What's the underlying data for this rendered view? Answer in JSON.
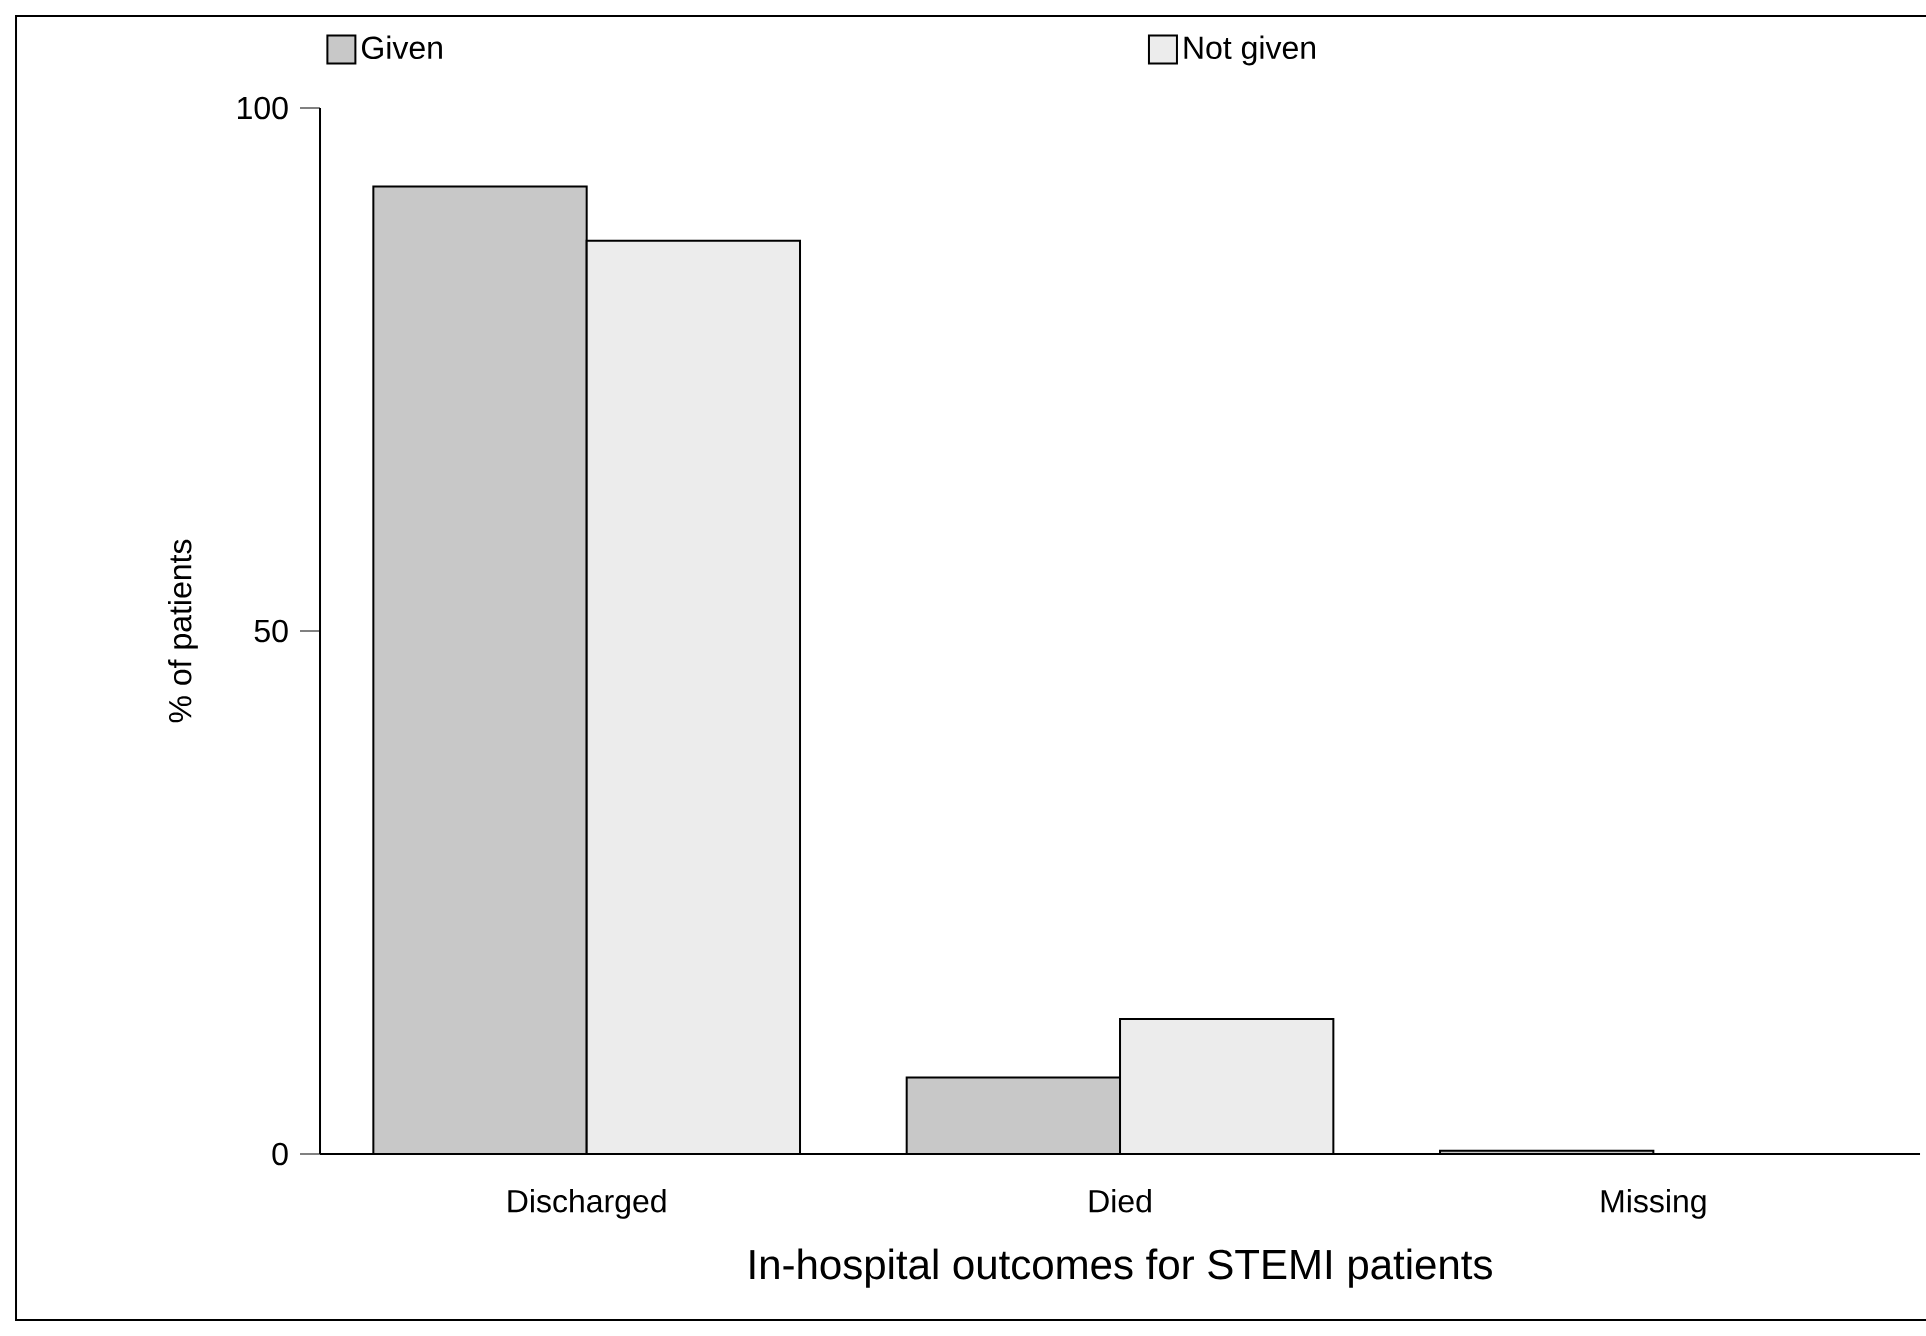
{
  "chart_data": {
    "type": "bar",
    "xlabel": "In-hospital outcomes for STEMI patients",
    "ylabel": "% of patients",
    "categories": [
      "Discharged",
      "Died",
      "Missing"
    ],
    "series": [
      {
        "name": "Given",
        "color": "#c8c8c8",
        "values": [
          92.5,
          7.3,
          0.3
        ]
      },
      {
        "name": "Not given",
        "color": "#ececec",
        "values": [
          87.3,
          12.9,
          null
        ]
      }
    ],
    "ylim": [
      0,
      100
    ],
    "yticks": [
      0,
      50,
      100
    ],
    "legend": "top"
  }
}
